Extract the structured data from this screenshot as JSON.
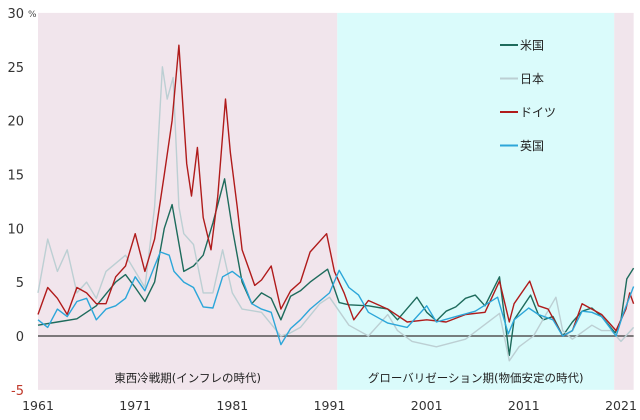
{
  "chart_data": {
    "type": "line",
    "title": "",
    "xlabel": "",
    "ylabel": "",
    "y_unit": "%",
    "xlim": [
      1961,
      2022.3
    ],
    "ylim": [
      -5,
      30
    ],
    "x_ticks": [
      "1961",
      "1971",
      "1981",
      "1991",
      "2001",
      "2011",
      "2021"
    ],
    "y_ticks": [
      "30",
      "25",
      "20",
      "15",
      "10",
      "5",
      "0",
      "-5"
    ],
    "grid": false,
    "legend_position": "top-right",
    "periods": [
      {
        "label": "東西冷戦期(インフレの時代)",
        "start": 1961,
        "end": 1991.8,
        "color": "#f1e5ec"
      },
      {
        "label": "グローバリゼーション期(物価安定の時代)",
        "start": 1991.8,
        "end": 2020.3,
        "color": "#dafbfb"
      },
      {
        "label": "",
        "start": 2020.3,
        "end": 2022.3,
        "color": "#f1e5ec"
      }
    ],
    "series": [
      {
        "name": "米国",
        "color": "#1e6b5c",
        "x": [
          1961,
          1963,
          1965,
          1967,
          1969,
          1970,
          1971,
          1972,
          1973,
          1974,
          1974.8,
          1976,
          1977,
          1978,
          1979,
          1980.2,
          1981,
          1982,
          1983,
          1984,
          1985,
          1986,
          1987,
          1988,
          1989,
          1990.8,
          1992,
          1993,
          1995,
          1997,
          1998,
          2000,
          2001,
          2002,
          2003,
          2004,
          2005,
          2006,
          2007,
          2008.5,
          2009.5,
          2010,
          2011.7,
          2012.5,
          2013,
          2014,
          2015,
          2016,
          2017,
          2018,
          2019,
          2020.4,
          2021,
          2021.6,
          2022.3
        ],
        "y": [
          1,
          1.3,
          1.6,
          2.8,
          5,
          5.7,
          4.5,
          3.2,
          5,
          10,
          12.2,
          6,
          6.5,
          7.5,
          10.5,
          14.6,
          10,
          5,
          3,
          4,
          3.5,
          1.5,
          3.7,
          4.2,
          5,
          6.2,
          3.1,
          2.9,
          2.8,
          2.5,
          1.5,
          3.6,
          2.2,
          1.4,
          2.3,
          2.7,
          3.5,
          3.8,
          2.8,
          5.5,
          -1.8,
          1.5,
          3.8,
          2,
          1.5,
          1.8,
          0,
          1.3,
          2.3,
          2.6,
          1.8,
          0.3,
          1.5,
          5.3,
          6.3
        ]
      },
      {
        "name": "日本",
        "color": "#bccfd3",
        "x": [
          1961,
          1962,
          1963,
          1964,
          1965,
          1966,
          1967,
          1968,
          1970,
          1971,
          1972,
          1973,
          1973.8,
          1974.3,
          1974.9,
          1975.5,
          1976,
          1977,
          1978,
          1979,
          1980,
          1981,
          1982,
          1984,
          1986,
          1987,
          1988,
          1990,
          1991,
          1993,
          1995,
          1997,
          1998,
          1999.5,
          2002,
          2005,
          2008.5,
          2009.5,
          2010.5,
          2012,
          2014.3,
          2015,
          2016,
          2018,
          2019,
          2020,
          2021,
          2022.3
        ],
        "y": [
          4,
          9,
          6,
          8,
          4,
          5,
          3.5,
          6,
          7.5,
          6,
          4.5,
          12,
          25,
          22,
          24,
          12,
          9.5,
          8.5,
          4,
          4,
          8,
          4,
          2.5,
          2.2,
          0,
          0.3,
          0.8,
          3,
          3.6,
          1,
          0,
          2,
          0.5,
          -0.5,
          -1,
          -0.3,
          2.1,
          -2.3,
          -1,
          0,
          3.6,
          0.5,
          -0.3,
          1,
          0.5,
          0.5,
          -0.5,
          0.8
        ]
      },
      {
        "name": "ドイツ",
        "color": "#b01b1b",
        "x": [
          1961,
          1962,
          1963,
          1964,
          1965,
          1966,
          1967,
          1968,
          1969,
          1970,
          1971,
          1972,
          1973,
          1974,
          1974.8,
          1975.5,
          1976.3,
          1976.8,
          1977.4,
          1978,
          1978.8,
          1979.5,
          1980.3,
          1980.8,
          1981.5,
          1982,
          1982.8,
          1983.3,
          1984,
          1985,
          1986,
          1987,
          1988,
          1989,
          1990.7,
          1991.5,
          1992.5,
          1993.5,
          1995,
          1997,
          1999,
          2001,
          2003,
          2005,
          2007,
          2008.5,
          2009.5,
          2010,
          2011.6,
          2012.5,
          2013.5,
          2015,
          2016,
          2017,
          2018,
          2019,
          2020.5,
          2021.5,
          2021.9,
          2022.3
        ],
        "y": [
          2,
          4.5,
          3.5,
          2,
          4.5,
          4,
          3,
          3,
          5.5,
          6.5,
          9.5,
          6,
          9,
          15,
          20,
          27,
          16,
          13,
          17.5,
          11,
          8,
          13,
          22,
          17,
          12,
          8,
          6,
          4.7,
          5.2,
          6.5,
          2.5,
          4.2,
          5,
          7.8,
          9.5,
          6,
          4,
          1.5,
          3.3,
          2.5,
          1.3,
          1.5,
          1.3,
          2,
          2.2,
          5.1,
          1.3,
          3,
          5.1,
          2.8,
          2.5,
          0,
          0.5,
          3,
          2.5,
          2,
          0.5,
          2.5,
          4,
          3
        ]
      },
      {
        "name": "英国",
        "color": "#2ca6d9",
        "x": [
          1961,
          1962,
          1963,
          1964,
          1965,
          1966,
          1967,
          1968,
          1969,
          1970,
          1971,
          1972,
          1973,
          1973.6,
          1974.5,
          1975,
          1976,
          1977,
          1978,
          1979,
          1980,
          1981,
          1982,
          1983,
          1984,
          1985,
          1986,
          1987,
          1988,
          1989,
          1991,
          1992,
          1993,
          1994,
          1995,
          1997,
          1999,
          2001,
          2002,
          2004,
          2006,
          2008.3,
          2009.4,
          2010,
          2011.5,
          2012.5,
          2014,
          2015,
          2016,
          2017,
          2018,
          2019,
          2020.5,
          2021.2,
          2022.3
        ],
        "y": [
          1.5,
          0.8,
          2.5,
          1.8,
          3.2,
          3.5,
          1.5,
          2.5,
          2.8,
          3.5,
          5.5,
          4.2,
          6.5,
          7.8,
          7.5,
          6,
          5,
          4.5,
          2.7,
          2.6,
          5.5,
          6,
          5.3,
          3,
          2.5,
          2.2,
          -0.8,
          0.7,
          1.5,
          2.5,
          4,
          6.1,
          4.5,
          3.8,
          2.2,
          1.2,
          0.8,
          2.8,
          1.3,
          1.8,
          2.3,
          3.6,
          0.2,
          1.5,
          2.6,
          2,
          1.5,
          0,
          0.5,
          2.3,
          2.2,
          1.8,
          0,
          2,
          4.6
        ]
      }
    ]
  }
}
